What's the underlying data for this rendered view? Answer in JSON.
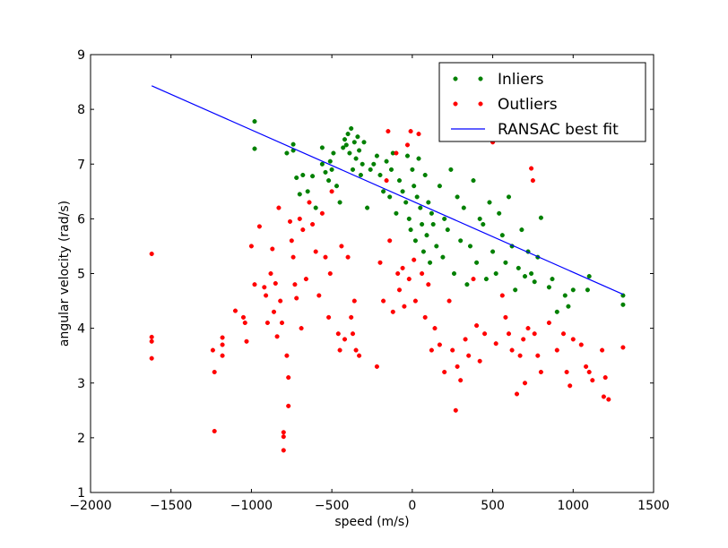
{
  "chart_data": {
    "type": "scatter",
    "xlabel": "speed (m/s)",
    "ylabel": "angular velocity (rad/s)",
    "xlim": [
      -2000,
      1500
    ],
    "ylim": [
      1,
      9
    ],
    "xticks": [
      "−2000",
      "−1500",
      "−1000",
      "−500",
      "0",
      "500",
      "1000",
      "1500"
    ],
    "yticks": [
      "1",
      "2",
      "3",
      "4",
      "5",
      "6",
      "7",
      "8",
      "9"
    ],
    "grid": false,
    "legend_position": "top-right",
    "series": [
      {
        "name": "Inliers",
        "kind": "points",
        "color": "#008000",
        "points": [
          [
            -980,
            7.78
          ],
          [
            -980,
            7.28
          ],
          [
            -780,
            7.2
          ],
          [
            -740,
            7.36
          ],
          [
            -740,
            7.25
          ],
          [
            -720,
            6.75
          ],
          [
            -700,
            6.45
          ],
          [
            -680,
            6.8
          ],
          [
            -650,
            6.5
          ],
          [
            -620,
            6.78
          ],
          [
            -600,
            6.2
          ],
          [
            -560,
            7.3
          ],
          [
            -560,
            7.0
          ],
          [
            -540,
            6.85
          ],
          [
            -520,
            6.7
          ],
          [
            -510,
            7.05
          ],
          [
            -500,
            6.9
          ],
          [
            -490,
            7.2
          ],
          [
            -470,
            6.6
          ],
          [
            -450,
            6.3
          ],
          [
            -430,
            7.3
          ],
          [
            -420,
            7.45
          ],
          [
            -410,
            7.35
          ],
          [
            -400,
            7.55
          ],
          [
            -390,
            7.2
          ],
          [
            -380,
            7.65
          ],
          [
            -370,
            6.9
          ],
          [
            -360,
            7.4
          ],
          [
            -350,
            7.1
          ],
          [
            -340,
            7.5
          ],
          [
            -330,
            7.25
          ],
          [
            -320,
            6.8
          ],
          [
            -310,
            7.0
          ],
          [
            -300,
            7.4
          ],
          [
            -280,
            6.2
          ],
          [
            -260,
            6.9
          ],
          [
            -240,
            7.0
          ],
          [
            -220,
            7.15
          ],
          [
            -200,
            6.8
          ],
          [
            -180,
            6.5
          ],
          [
            -160,
            7.05
          ],
          [
            -140,
            6.4
          ],
          [
            -130,
            6.9
          ],
          [
            -120,
            7.2
          ],
          [
            -100,
            6.1
          ],
          [
            -80,
            6.7
          ],
          [
            -60,
            6.5
          ],
          [
            -40,
            6.3
          ],
          [
            -30,
            7.15
          ],
          [
            -20,
            6.0
          ],
          [
            -10,
            5.8
          ],
          [
            0,
            6.9
          ],
          [
            10,
            6.6
          ],
          [
            20,
            5.6
          ],
          [
            30,
            6.4
          ],
          [
            40,
            7.1
          ],
          [
            50,
            6.2
          ],
          [
            60,
            5.9
          ],
          [
            70,
            5.4
          ],
          [
            80,
            6.8
          ],
          [
            90,
            5.7
          ],
          [
            100,
            6.3
          ],
          [
            110,
            5.2
          ],
          [
            120,
            6.1
          ],
          [
            130,
            5.9
          ],
          [
            150,
            5.5
          ],
          [
            170,
            6.6
          ],
          [
            190,
            5.3
          ],
          [
            200,
            6.0
          ],
          [
            220,
            5.8
          ],
          [
            240,
            6.9
          ],
          [
            260,
            5.0
          ],
          [
            280,
            6.4
          ],
          [
            300,
            5.6
          ],
          [
            320,
            6.2
          ],
          [
            340,
            4.8
          ],
          [
            360,
            5.5
          ],
          [
            380,
            6.7
          ],
          [
            400,
            5.2
          ],
          [
            420,
            6.0
          ],
          [
            440,
            5.9
          ],
          [
            460,
            4.9
          ],
          [
            480,
            6.3
          ],
          [
            500,
            5.4
          ],
          [
            520,
            5.0
          ],
          [
            540,
            6.1
          ],
          [
            560,
            5.7
          ],
          [
            580,
            5.2
          ],
          [
            600,
            6.4
          ],
          [
            620,
            5.5
          ],
          [
            640,
            4.7
          ],
          [
            660,
            5.1
          ],
          [
            680,
            5.8
          ],
          [
            700,
            4.95
          ],
          [
            720,
            5.4
          ],
          [
            740,
            5.0
          ],
          [
            760,
            4.85
          ],
          [
            780,
            5.3
          ],
          [
            800,
            6.02
          ],
          [
            850,
            4.75
          ],
          [
            870,
            4.9
          ],
          [
            900,
            4.3
          ],
          [
            950,
            4.6
          ],
          [
            970,
            4.4
          ],
          [
            1000,
            4.7
          ],
          [
            1100,
            4.95
          ],
          [
            1090,
            4.7
          ],
          [
            1310,
            4.6
          ],
          [
            1310,
            4.43
          ]
        ]
      },
      {
        "name": "Outliers",
        "kind": "points",
        "color": "#ff0000",
        "points": [
          [
            -1620,
            5.36
          ],
          [
            -1620,
            3.84
          ],
          [
            -1620,
            3.76
          ],
          [
            -1620,
            3.45
          ],
          [
            -1240,
            3.6
          ],
          [
            -1230,
            3.2
          ],
          [
            -1230,
            2.12
          ],
          [
            -1180,
            3.83
          ],
          [
            -1180,
            3.7
          ],
          [
            -1180,
            3.5
          ],
          [
            -1100,
            4.32
          ],
          [
            -1050,
            4.2
          ],
          [
            -1040,
            4.1
          ],
          [
            -1030,
            3.76
          ],
          [
            -1000,
            5.5
          ],
          [
            -980,
            4.8
          ],
          [
            -950,
            5.86
          ],
          [
            -920,
            4.75
          ],
          [
            -910,
            4.6
          ],
          [
            -900,
            4.1
          ],
          [
            -880,
            5.0
          ],
          [
            -870,
            5.45
          ],
          [
            -860,
            4.3
          ],
          [
            -850,
            4.82
          ],
          [
            -840,
            3.85
          ],
          [
            -830,
            6.2
          ],
          [
            -820,
            4.5
          ],
          [
            -810,
            4.1
          ],
          [
            -800,
            2.1
          ],
          [
            -800,
            2.02
          ],
          [
            -800,
            1.77
          ],
          [
            -780,
            3.5
          ],
          [
            -770,
            3.1
          ],
          [
            -770,
            2.58
          ],
          [
            -760,
            5.95
          ],
          [
            -750,
            5.6
          ],
          [
            -740,
            5.3
          ],
          [
            -730,
            4.8
          ],
          [
            -720,
            4.55
          ],
          [
            -700,
            6.0
          ],
          [
            -690,
            4.0
          ],
          [
            -680,
            5.8
          ],
          [
            -660,
            4.9
          ],
          [
            -640,
            6.3
          ],
          [
            -620,
            5.9
          ],
          [
            -600,
            5.4
          ],
          [
            -580,
            4.6
          ],
          [
            -560,
            6.1
          ],
          [
            -540,
            5.3
          ],
          [
            -520,
            4.2
          ],
          [
            -510,
            5.0
          ],
          [
            -500,
            6.5
          ],
          [
            -460,
            3.9
          ],
          [
            -450,
            3.6
          ],
          [
            -440,
            5.5
          ],
          [
            -420,
            3.8
          ],
          [
            -400,
            5.3
          ],
          [
            -380,
            4.2
          ],
          [
            -370,
            3.9
          ],
          [
            -360,
            4.5
          ],
          [
            -350,
            3.6
          ],
          [
            -330,
            3.5
          ],
          [
            -220,
            3.3
          ],
          [
            -200,
            5.2
          ],
          [
            -180,
            4.5
          ],
          [
            -160,
            6.7
          ],
          [
            -150,
            7.6
          ],
          [
            -140,
            5.6
          ],
          [
            -120,
            4.3
          ],
          [
            -100,
            7.2
          ],
          [
            -90,
            5.0
          ],
          [
            -80,
            4.7
          ],
          [
            -60,
            5.1
          ],
          [
            -50,
            4.4
          ],
          [
            -30,
            7.35
          ],
          [
            -20,
            4.9
          ],
          [
            -10,
            7.6
          ],
          [
            10,
            5.25
          ],
          [
            20,
            4.5
          ],
          [
            40,
            7.55
          ],
          [
            60,
            5.0
          ],
          [
            80,
            4.2
          ],
          [
            100,
            4.8
          ],
          [
            120,
            3.6
          ],
          [
            140,
            4.0
          ],
          [
            170,
            3.7
          ],
          [
            200,
            3.2
          ],
          [
            230,
            4.5
          ],
          [
            250,
            3.6
          ],
          [
            270,
            2.5
          ],
          [
            280,
            3.3
          ],
          [
            300,
            3.05
          ],
          [
            330,
            3.8
          ],
          [
            350,
            3.5
          ],
          [
            380,
            4.9
          ],
          [
            400,
            4.05
          ],
          [
            420,
            3.4
          ],
          [
            450,
            3.9
          ],
          [
            500,
            7.4
          ],
          [
            520,
            3.72
          ],
          [
            560,
            4.6
          ],
          [
            580,
            4.2
          ],
          [
            600,
            3.9
          ],
          [
            620,
            3.6
          ],
          [
            650,
            2.8
          ],
          [
            670,
            3.5
          ],
          [
            690,
            3.8
          ],
          [
            700,
            3.0
          ],
          [
            720,
            4.0
          ],
          [
            740,
            6.92
          ],
          [
            750,
            6.7
          ],
          [
            760,
            3.9
          ],
          [
            780,
            3.5
          ],
          [
            800,
            3.2
          ],
          [
            850,
            4.1
          ],
          [
            900,
            3.6
          ],
          [
            940,
            3.9
          ],
          [
            960,
            3.2
          ],
          [
            980,
            2.95
          ],
          [
            1000,
            3.8
          ],
          [
            1050,
            3.7
          ],
          [
            1080,
            3.3
          ],
          [
            1100,
            3.2
          ],
          [
            1120,
            3.05
          ],
          [
            1180,
            3.6
          ],
          [
            1190,
            2.75
          ],
          [
            1200,
            3.1
          ],
          [
            1220,
            2.7
          ],
          [
            1310,
            3.65
          ]
        ]
      },
      {
        "name": "RANSAC best fit",
        "kind": "line",
        "color": "#0000ff",
        "points": [
          [
            -1620,
            8.43
          ],
          [
            1310,
            4.62
          ]
        ]
      }
    ]
  }
}
